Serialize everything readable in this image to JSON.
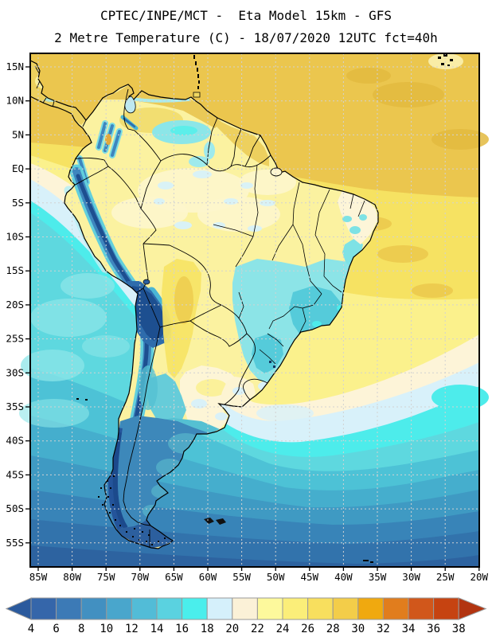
{
  "header": {
    "line1": "CPTEC/INPE/MCT -  Eta Model 15km - GFS",
    "line2": "2 Metre Temperature (C) - 18/07/2020 12UTC fct=40h"
  },
  "map_axes": {
    "lat_labels": [
      "15N",
      "10N",
      "5N",
      "EQ",
      "5S",
      "10S",
      "15S",
      "20S",
      "25S",
      "30S",
      "35S",
      "40S",
      "45S",
      "50S",
      "55S"
    ],
    "lon_labels": [
      "85W",
      "80W",
      "75W",
      "70W",
      "65W",
      "60W",
      "55W",
      "50W",
      "45W",
      "40W",
      "35W",
      "30W",
      "25W",
      "20W"
    ]
  },
  "colorbar": {
    "tick_labels": [
      "4",
      "6",
      "8",
      "10",
      "12",
      "14",
      "16",
      "18",
      "20",
      "22",
      "24",
      "26",
      "28",
      "30",
      "32",
      "34",
      "36",
      "38"
    ],
    "segment_colors": [
      "#3566aa",
      "#3c7ab6",
      "#4290c1",
      "#49a6cc",
      "#52bcd7",
      "#5ad2e0",
      "#4aeeec",
      "#d5f0fb",
      "#fbf1d7",
      "#fdf99c",
      "#fbee79",
      "#f8df5e",
      "#f3cd49",
      "#f0a90f",
      "#e17d1d",
      "#d1571b",
      "#c64311"
    ],
    "below_min_color": "#2b5a9d",
    "above_max_color": "#b23410"
  },
  "chart_data": {
    "type": "heatmap",
    "title": "CPTEC/INPE/MCT -  Eta Model 15km - GFS",
    "subtitle": "2 Metre Temperature (C) - 18/07/2020 12UTC fct=40h",
    "variable": "2 Metre Temperature",
    "units": "C",
    "model": "Eta Model 15km - GFS",
    "institution": "CPTEC/INPE/MCT",
    "run_datetime": "18/07/2020 12UTC",
    "forecast": "fct=40h",
    "lon_ticks": [
      "85W",
      "80W",
      "75W",
      "70W",
      "65W",
      "60W",
      "55W",
      "50W",
      "45W",
      "40W",
      "35W",
      "30W",
      "25W",
      "20W"
    ],
    "lat_ticks": [
      "15N",
      "10N",
      "5N",
      "EQ",
      "5S",
      "10S",
      "15S",
      "20S",
      "25S",
      "30S",
      "35S",
      "40S",
      "45S",
      "50S",
      "55S"
    ],
    "grid_interval_deg": 5,
    "colorbar_levels_c": [
      4,
      6,
      8,
      10,
      12,
      14,
      16,
      18,
      20,
      22,
      24,
      26,
      28,
      30,
      32,
      34,
      36,
      38
    ],
    "palette": [
      "#3566aa",
      "#3c7ab6",
      "#4290c1",
      "#49a6cc",
      "#52bcd7",
      "#5ad2e0",
      "#4aeeec",
      "#d5f0fb",
      "#fbf1d7",
      "#fdf99c",
      "#fbee79",
      "#f8df5e",
      "#f3cd49",
      "#f0a90f",
      "#e17d1d",
      "#d1571b",
      "#c64311"
    ],
    "region_readings_c": [
      {
        "region": "Caribbean / tropical North Atlantic",
        "approx_temp": "26-28"
      },
      {
        "region": "Amazon basin",
        "approx_temp": "20-24"
      },
      {
        "region": "Northeast Brazil coast",
        "approx_temp": "20-24"
      },
      {
        "region": "Central-Southeast Brazil (Minas/Sao Paulo)",
        "approx_temp": "12-16"
      },
      {
        "region": "Chaco (Paraguay / N Argentina)",
        "approx_temp": "22-26"
      },
      {
        "region": "Uruguay / Pampas",
        "approx_temp": "18-22"
      },
      {
        "region": "Andes / Altiplano",
        "approx_temp": "4-8"
      },
      {
        "region": "Patagonia",
        "approx_temp": "4-10"
      },
      {
        "region": "Tierra del Fuego",
        "approx_temp": "<4"
      },
      {
        "region": "SE Pacific 10S-25S",
        "approx_temp": "14-16"
      },
      {
        "region": "South Atlantic 35S-45S",
        "approx_temp": "8-16"
      },
      {
        "region": "Southern Ocean 50S-58S",
        "approx_temp": "4-8"
      }
    ]
  }
}
